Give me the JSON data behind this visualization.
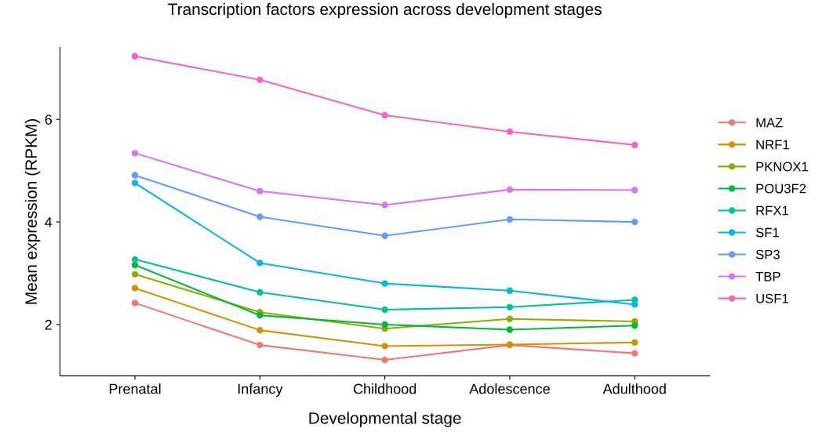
{
  "chart_data": {
    "type": "line",
    "title": "Transcription factors expression across development stages",
    "xlabel": "Developmental stage",
    "ylabel": "Mean expression (RPKM)",
    "categories": [
      "Prenatal",
      "Infancy",
      "Childhood",
      "Adolescence",
      "Adulthood"
    ],
    "ylim": [
      1.0,
      7.4
    ],
    "yticks": [
      2,
      4,
      6
    ],
    "grid": false,
    "legend": "right",
    "marker": "circle",
    "line_style": "solid",
    "series": [
      {
        "name": "MAZ",
        "color": "#F8766D",
        "values": [
          2.42,
          1.6,
          1.31,
          1.6,
          1.44
        ]
      },
      {
        "name": "NRF1",
        "color": "#D39200",
        "values": [
          2.71,
          1.89,
          1.58,
          1.61,
          1.65
        ]
      },
      {
        "name": "PKNOX1",
        "color": "#93AA00",
        "values": [
          2.98,
          2.24,
          1.92,
          2.11,
          2.06
        ]
      },
      {
        "name": "POU3F2",
        "color": "#00BA38",
        "values": [
          3.16,
          2.18,
          2.0,
          1.9,
          1.98
        ]
      },
      {
        "name": "RFX1",
        "color": "#00C19F",
        "values": [
          3.27,
          2.63,
          2.29,
          2.34,
          2.48
        ]
      },
      {
        "name": "SF1",
        "color": "#00B9E3",
        "values": [
          4.76,
          3.2,
          2.8,
          2.66,
          2.39
        ]
      },
      {
        "name": "SP3",
        "color": "#619CFF",
        "values": [
          4.91,
          4.1,
          3.73,
          4.05,
          4.0
        ]
      },
      {
        "name": "TBP",
        "color": "#DB72FB",
        "values": [
          5.34,
          4.6,
          4.33,
          4.63,
          4.62
        ]
      },
      {
        "name": "USF1",
        "color": "#FF61C3",
        "values": [
          7.23,
          6.77,
          6.08,
          5.76,
          5.5
        ]
      }
    ]
  }
}
